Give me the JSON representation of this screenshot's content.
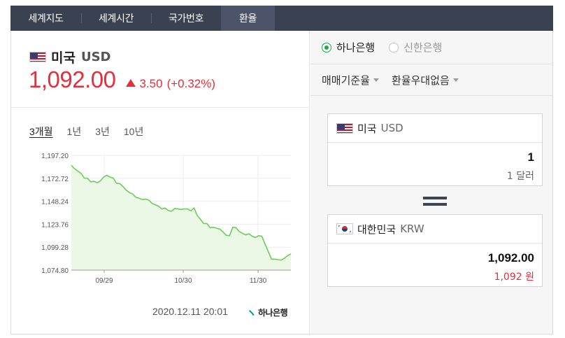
{
  "tabs": [
    "세계지도",
    "세계시간",
    "국가번호",
    "환율"
  ],
  "active_tab": 3,
  "summary": {
    "currency_name": "미국",
    "currency_code": "USD",
    "rate": "1,092.00",
    "change": "3.50",
    "change_pct": "(+0.32%)",
    "direction": "up"
  },
  "periods": [
    "3개월",
    "1년",
    "3년",
    "10년"
  ],
  "active_period": 0,
  "footer": {
    "datetime": "2020.12.11 20:01",
    "bank_logo_text": "하나은행"
  },
  "banks": [
    {
      "label": "하나은행",
      "selected": true
    },
    {
      "label": "신한은행",
      "selected": false
    }
  ],
  "filters": [
    "매매기준율",
    "환율우대없음"
  ],
  "converter": {
    "from": {
      "name": "미국",
      "code": "USD",
      "amount": "1",
      "sub": "1 달러"
    },
    "to": {
      "name": "대한민국",
      "code": "KRW",
      "amount": "1,092.00",
      "sub": "1,092 원"
    }
  },
  "colors": {
    "up": "#e62e3a",
    "line": "#6dcc5a",
    "fill": "#eaf8e5",
    "tab_bg": "#3a4150",
    "radio_on": "#1aaa3e"
  },
  "chart_data": {
    "type": "area",
    "y_ticks": [
      "1,197.20",
      "1,172.72",
      "1,148.24",
      "1,123.76",
      "1,099.28",
      "1,074.80"
    ],
    "ylim": [
      1074.8,
      1197.2
    ],
    "x_ticks": [
      "09/29",
      "10/30",
      "11/30"
    ],
    "values": [
      1186.5,
      1183.0,
      1180.5,
      1178.0,
      1173.0,
      1172.8,
      1169.0,
      1169.5,
      1168.0,
      1170.0,
      1174.0,
      1176.0,
      1174.0,
      1173.0,
      1167.5,
      1167.0,
      1164.0,
      1160.0,
      1157.5,
      1156.0,
      1152.5,
      1151.5,
      1150.0,
      1150.5,
      1149.5,
      1146.0,
      1144.5,
      1143.0,
      1140.0,
      1141.0,
      1138.5,
      1137.5,
      1140.5,
      1140.0,
      1139.5,
      1140.0,
      1140.0,
      1138.0,
      1141.0,
      1133.0,
      1129.0,
      1124.5,
      1124.5,
      1120.0,
      1120.5,
      1119.5,
      1118.5,
      1115.5,
      1112.0,
      1111.5,
      1120.5,
      1120.0,
      1116.0,
      1114.0,
      1112.5,
      1113.5,
      1111.0,
      1109.5,
      1111.5,
      1111.0,
      1102.5,
      1094.5,
      1086.5,
      1086.5,
      1086.0,
      1085.5,
      1087.5,
      1090.5,
      1092.0
    ]
  }
}
